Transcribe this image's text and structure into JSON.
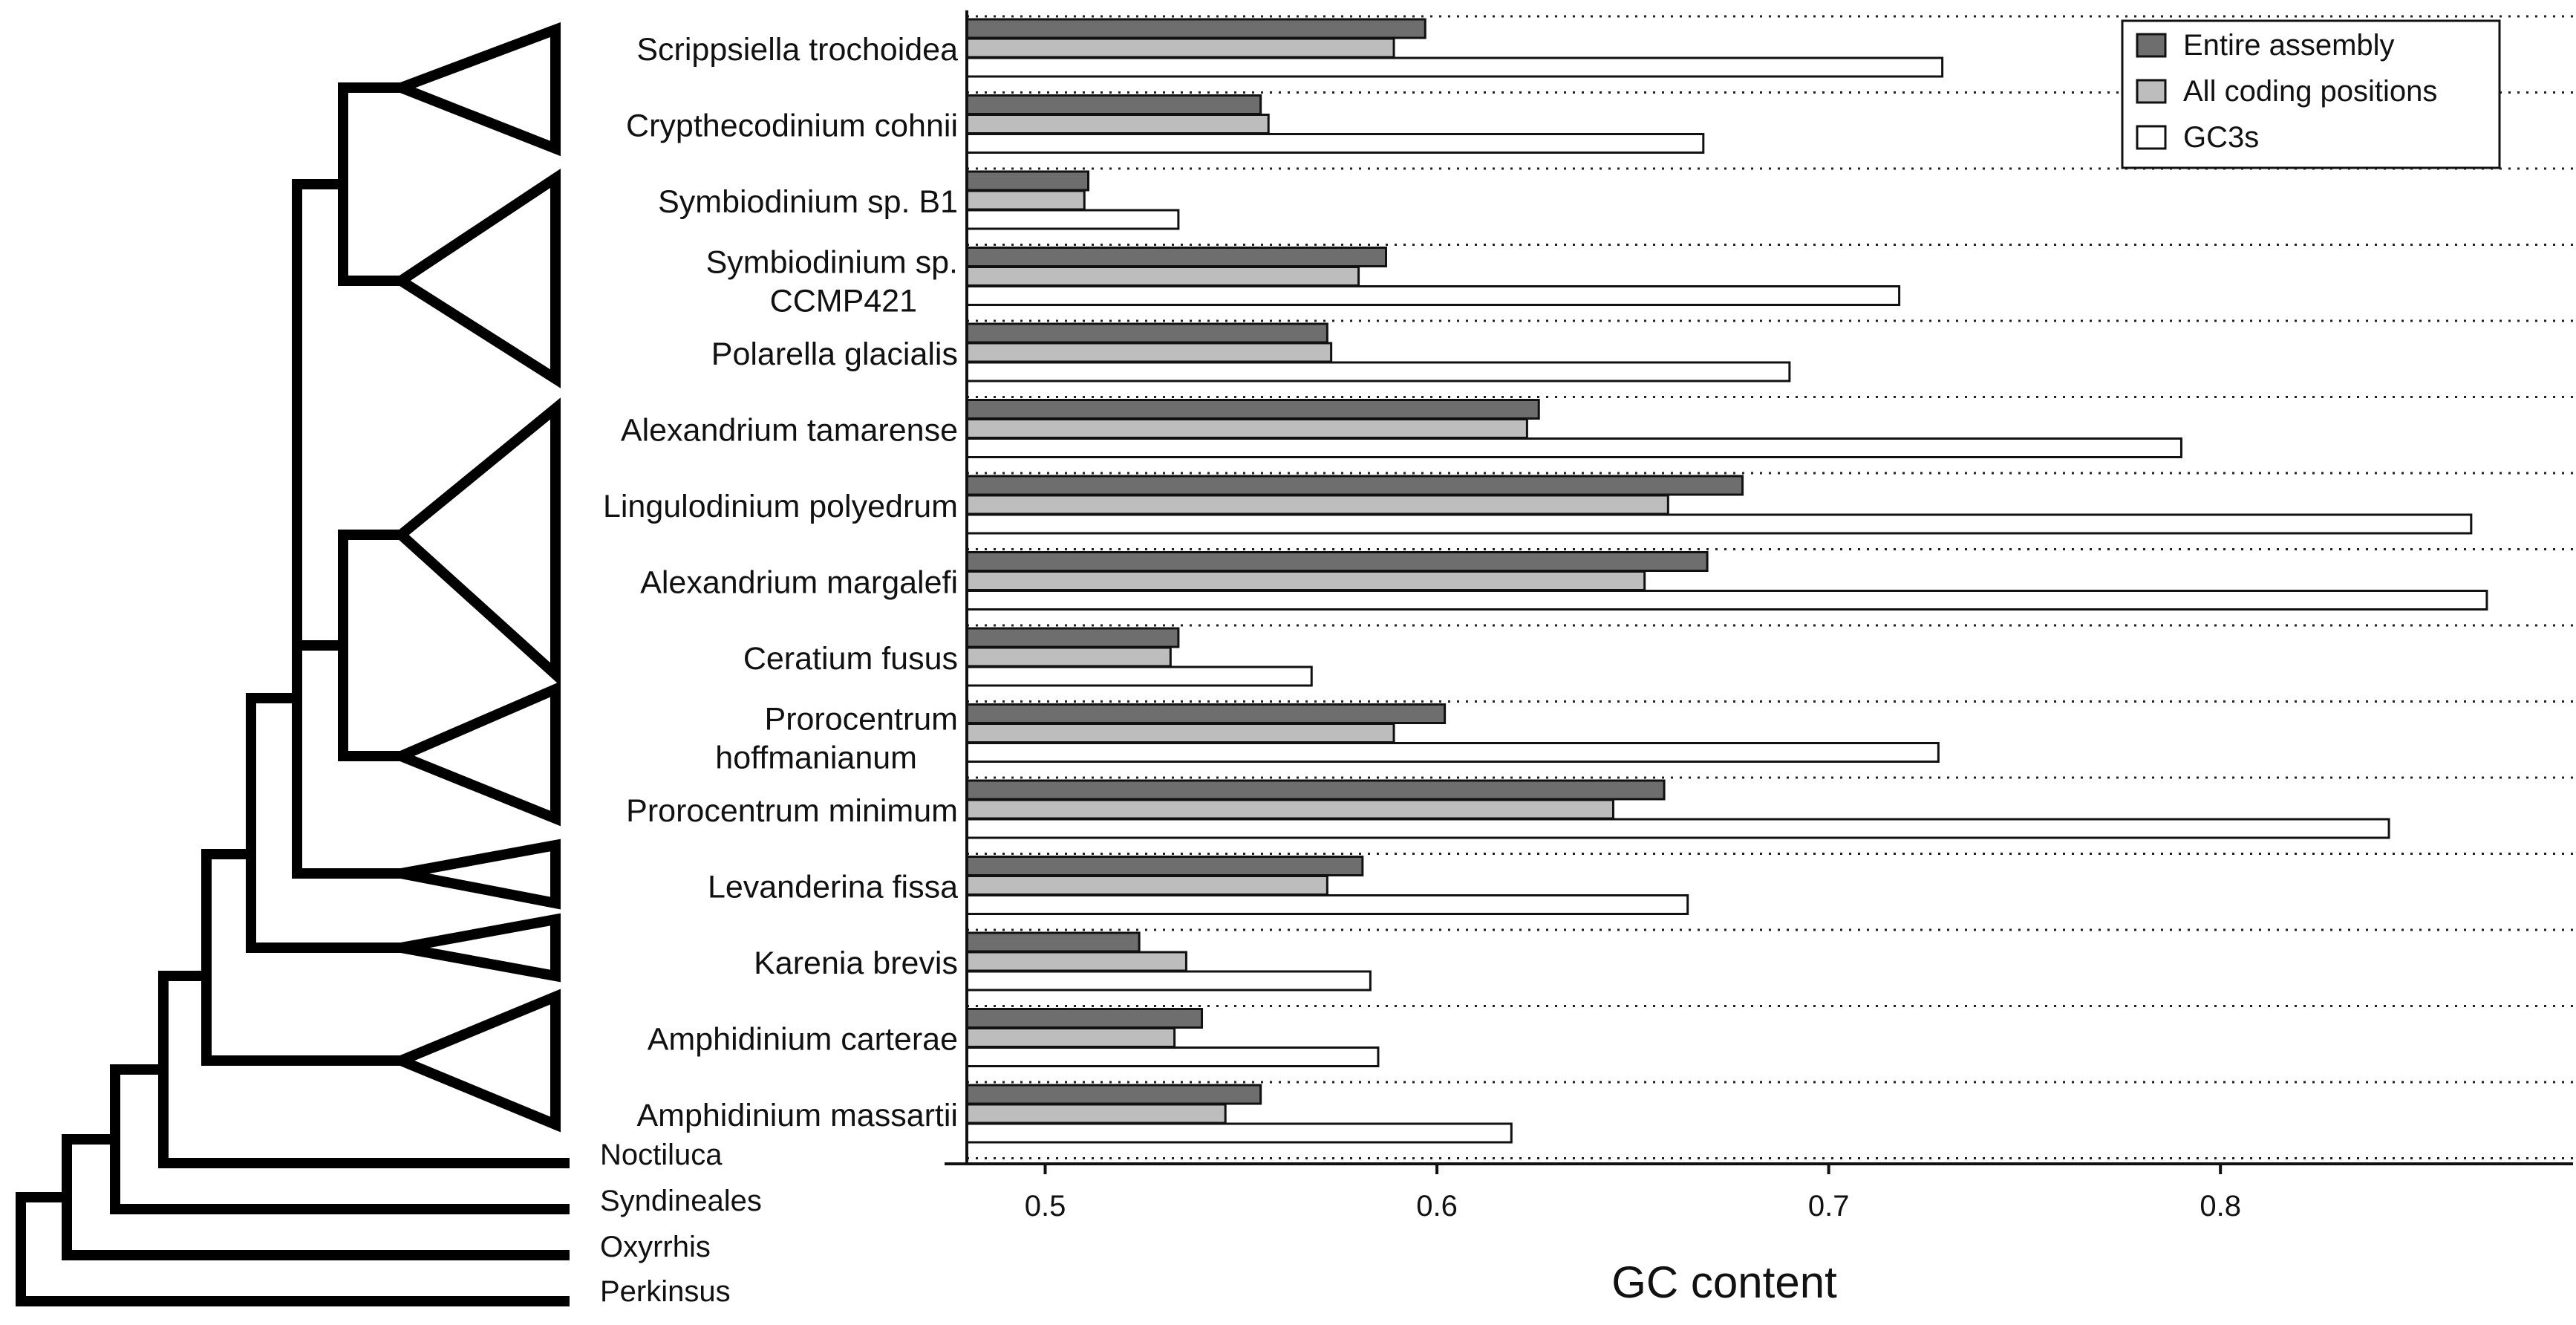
{
  "chart_data": {
    "type": "bar",
    "orientation": "horizontal",
    "xlabel": "GC content",
    "xlim": [
      0.48,
      0.89
    ],
    "xticks": [
      0.5,
      0.6,
      0.7,
      0.8
    ],
    "xtick_labels": [
      "0.5",
      "0.6",
      "0.7",
      "0.8"
    ],
    "grid": "dotted separators between species",
    "legend_position": "top-right",
    "series": [
      {
        "name": "Entire assembly",
        "color": "#6e6e6e",
        "values": [
          0.597,
          0.555,
          0.511,
          0.587,
          0.572,
          0.626,
          0.678,
          0.669,
          0.534,
          0.602,
          0.658,
          0.581,
          0.524,
          0.54,
          0.555
        ]
      },
      {
        "name": "All coding positions",
        "color": "#bdbdbd",
        "values": [
          0.589,
          0.557,
          0.51,
          0.58,
          0.573,
          0.623,
          0.659,
          0.653,
          0.532,
          0.589,
          0.645,
          0.572,
          0.536,
          0.533,
          0.546
        ]
      },
      {
        "name": "GC3s",
        "color": "#ffffff",
        "values": [
          0.729,
          0.668,
          0.534,
          0.718,
          0.69,
          0.79,
          0.864,
          0.868,
          0.568,
          0.728,
          0.843,
          0.664,
          0.583,
          0.585,
          0.619
        ]
      }
    ],
    "categories": [
      [
        "Scrippsiella trochoidea"
      ],
      [
        "Crypthecodinium cohnii"
      ],
      [
        "Symbiodinium sp. B1"
      ],
      [
        "Symbiodinium sp.",
        "CCMP421"
      ],
      [
        "Polarella glacialis"
      ],
      [
        "Alexandrium tamarense"
      ],
      [
        "Lingulodinium polyedrum"
      ],
      [
        "Alexandrium margalefi"
      ],
      [
        "Ceratium fusus"
      ],
      [
        "Prorocentrum",
        "hoffmanianum"
      ],
      [
        "Prorocentrum minimum"
      ],
      [
        "Levanderina fissa"
      ],
      [
        "Karenia brevis"
      ],
      [
        "Amphidinium carterae"
      ],
      [
        "Amphidinium massartii"
      ]
    ],
    "outgroups": [
      "Noctiluca",
      "Syndineales",
      "Oxyrrhis",
      "Perkinsus"
    ]
  }
}
